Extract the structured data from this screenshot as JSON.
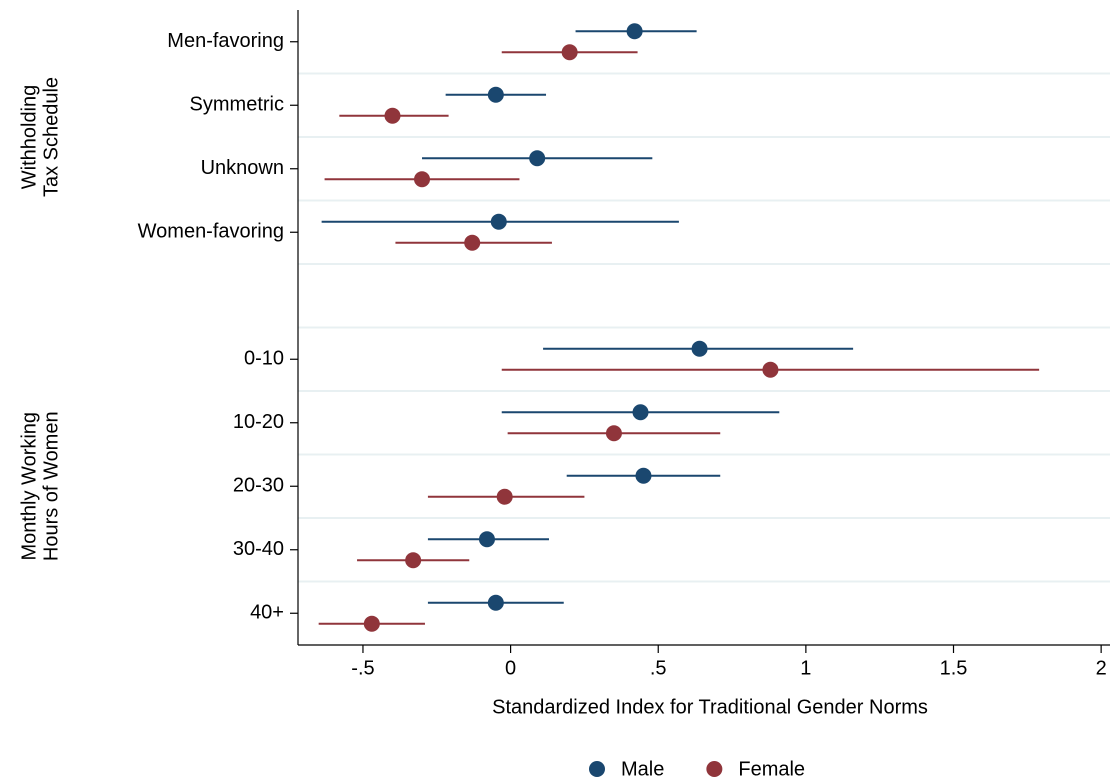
{
  "chart_data": {
    "type": "errorbar",
    "categories": [
      "Men-favoring",
      "Symmetric",
      "Unknown",
      "Women-favoring",
      null,
      "0-10",
      "10-20",
      "20-30",
      "30-40",
      "40+"
    ],
    "groups": [
      [
        "Withholding",
        "Tax Schedule"
      ],
      [
        "Monthly Working",
        "Hours of Women"
      ]
    ],
    "series": [
      {
        "name": "Male",
        "color": "#1a476f",
        "values": [
          0.42,
          -0.05,
          0.09,
          -0.04,
          null,
          0.64,
          0.44,
          0.45,
          -0.08,
          -0.05
        ],
        "ci_low": [
          0.22,
          -0.22,
          -0.3,
          -0.64,
          null,
          0.11,
          -0.03,
          0.19,
          -0.28,
          -0.28
        ],
        "ci_high": [
          0.63,
          0.12,
          0.48,
          0.57,
          null,
          1.16,
          0.91,
          0.71,
          0.13,
          0.18
        ]
      },
      {
        "name": "Female",
        "color": "#90353b",
        "values": [
          0.2,
          -0.4,
          -0.3,
          -0.13,
          null,
          0.88,
          0.35,
          -0.02,
          -0.33,
          -0.47
        ],
        "ci_low": [
          -0.03,
          -0.58,
          -0.63,
          -0.39,
          null,
          -0.03,
          -0.01,
          -0.28,
          -0.52,
          -0.65
        ],
        "ci_high": [
          0.43,
          -0.21,
          0.03,
          0.14,
          null,
          1.79,
          0.71,
          0.25,
          -0.14,
          -0.29
        ]
      }
    ],
    "xlabel": "Standardized Index for Traditional Gender Norms",
    "xlim": [
      -0.72,
      2.03
    ],
    "xticks": [
      {
        "value": -0.5,
        "label": "-.5"
      },
      0,
      {
        "value": 0.5,
        "label": ".5"
      },
      1,
      1.5,
      2
    ],
    "grid": true,
    "legend": "bottom"
  }
}
